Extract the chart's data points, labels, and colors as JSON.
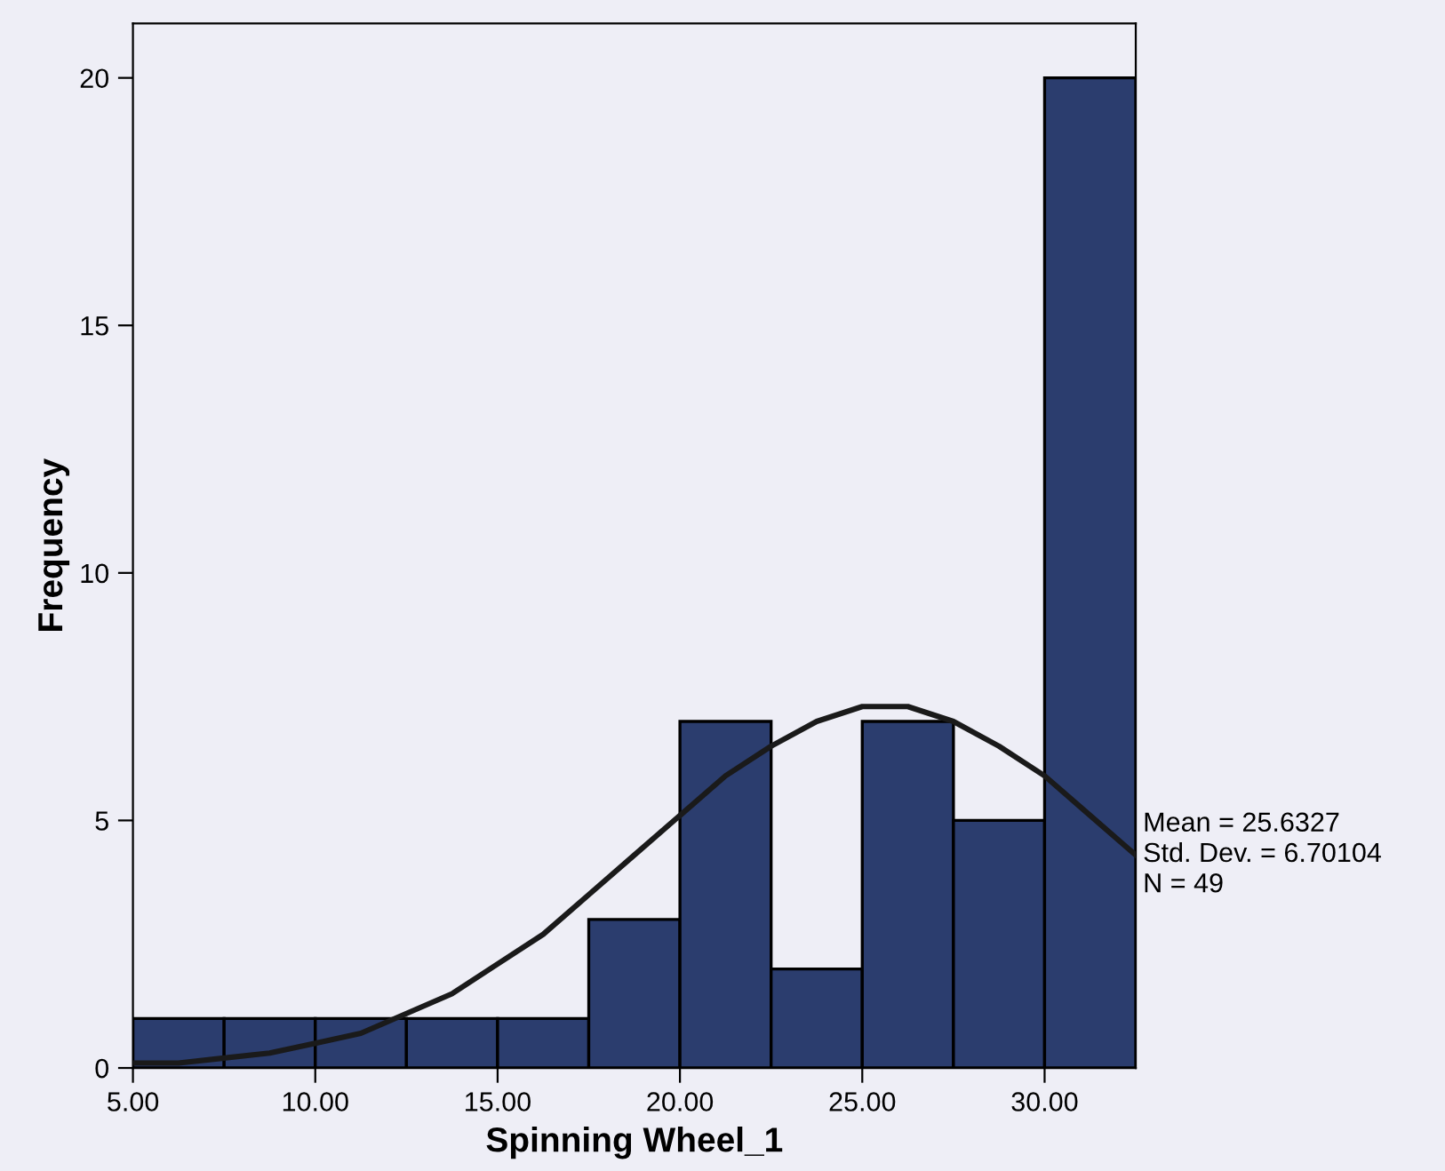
{
  "chart_data": {
    "type": "histogram",
    "xlabel": "Spinning Wheel_1",
    "ylabel": "Frequency",
    "bins": [
      5,
      7.5,
      10,
      12.5,
      15,
      17.5,
      20,
      22.5,
      25,
      27.5,
      30,
      32.5
    ],
    "values": [
      1,
      1,
      1,
      1,
      1,
      3,
      7,
      2,
      7,
      5,
      20
    ],
    "color": "#2b3d6e",
    "series": [
      {
        "type": "line",
        "color": "#1a1a1a",
        "x": [
          5,
          6.25,
          7.5,
          8.75,
          10,
          11.25,
          12.5,
          13.75,
          15,
          16.25,
          17.5,
          18.75,
          20,
          21.25,
          22.5,
          23.75,
          25,
          26.25,
          27.5,
          28.75,
          30,
          31.25,
          32.5
        ],
        "values": [
          0.1,
          0.1,
          0.2,
          0.3,
          0.5,
          0.7,
          1.1,
          1.5,
          2.1,
          2.7,
          3.5,
          4.3,
          5.1,
          5.9,
          6.5,
          7.0,
          7.3,
          7.3,
          7.0,
          6.5,
          5.9,
          5.1,
          4.3
        ]
      }
    ],
    "xlim": [
      5,
      32.5
    ],
    "ylim": [
      0,
      21.1
    ],
    "xticks": [
      {
        "value": 5,
        "label": "5.00"
      },
      {
        "value": 10,
        "label": "10.00"
      },
      {
        "value": 15,
        "label": "15.00"
      },
      {
        "value": 20,
        "label": "20.00"
      },
      {
        "value": 25,
        "label": "25.00"
      },
      {
        "value": 30,
        "label": "30.00"
      }
    ],
    "yticks": [
      0,
      5,
      10,
      15,
      20
    ],
    "annotations": [
      "Mean = 25.6327",
      "Std. Dev. = 6.70104",
      "N = 49"
    ]
  }
}
